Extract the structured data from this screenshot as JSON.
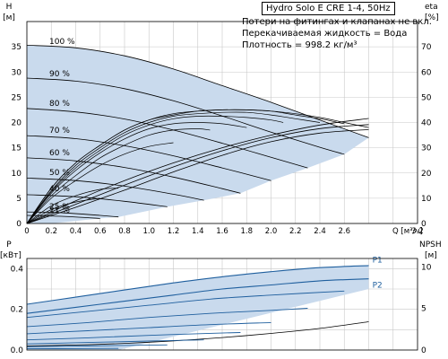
{
  "model": "Hydro Solo E CRE 1-4, 50Hz",
  "notes": [
    "Потери на фитингах и клапанах не вкл.",
    "Перекачиваемая жидкость = Вода",
    "Плотность = 998.2 кг/м³"
  ],
  "colors": {
    "envelope_fill": "#c9daed",
    "curve": "#000000",
    "power_curve": "#1f5f9e",
    "grid": "#c8c8c8"
  },
  "top": {
    "ylabel_left": [
      "H",
      "[м]"
    ],
    "ylabel_right": [
      "eta",
      "[%]"
    ],
    "xlabel": "Q [м³/ч]",
    "xlim": [
      0,
      3.2
    ],
    "ylim_left": [
      0,
      40
    ],
    "ylim_right": [
      0,
      80
    ],
    "x_ticks": [
      "0",
      "0.2",
      "0.4",
      "0.6",
      "0.8",
      "1.0",
      "1.2",
      "1.4",
      "1.6",
      "1.8",
      "2.0",
      "2.2",
      "2.4",
      "2.6",
      "",
      "",
      "3.2"
    ],
    "y_left_ticks": [
      "0",
      "5",
      "10",
      "15",
      "20",
      "25",
      "30",
      "35"
    ],
    "y_right_ticks": [
      "0",
      "10",
      "20",
      "30",
      "40",
      "50",
      "60",
      "70"
    ],
    "speed_labels": [
      "100 %",
      "90 %",
      "80 %",
      "70 %",
      "60 %",
      "50 %",
      "40 %",
      "25 %",
      "21 %"
    ]
  },
  "bottom": {
    "ylabel_left": [
      "P",
      "[кВт]"
    ],
    "ylabel_right": [
      "NPSH",
      "[м]"
    ],
    "ylim_left": [
      0,
      0.45
    ],
    "ylim_right": [
      0,
      11
    ],
    "y_left_ticks": [
      "0.0",
      "0.2",
      "0.4"
    ],
    "y_right_ticks": [
      "0",
      "5",
      "10"
    ],
    "series_labels": [
      "P1",
      "P2"
    ]
  },
  "chart_data": [
    {
      "type": "line",
      "title": "",
      "xlabel": "Q [м³/ч]",
      "ylabel": "H [м]",
      "xlim": [
        0,
        3.2
      ],
      "ylim": [
        0,
        40
      ],
      "grid": true,
      "series": [
        {
          "name": "100 %",
          "x": [
            0,
            0.4,
            0.8,
            1.2,
            1.6,
            2.0,
            2.4,
            2.8
          ],
          "y": [
            35.3,
            34.8,
            33.2,
            30.6,
            27.3,
            24.0,
            20.5,
            17.0
          ]
        },
        {
          "name": "90 %",
          "x": [
            0,
            0.4,
            0.8,
            1.2,
            1.6,
            2.0,
            2.4,
            2.6
          ],
          "y": [
            28.8,
            28.2,
            26.7,
            24.3,
            21.3,
            18.1,
            15.1,
            13.7
          ]
        },
        {
          "name": "80 %",
          "x": [
            0,
            0.4,
            0.8,
            1.2,
            1.6,
            2.0,
            2.3
          ],
          "y": [
            22.8,
            22.1,
            20.7,
            18.5,
            15.9,
            13.1,
            11.0
          ]
        },
        {
          "name": "70 %",
          "x": [
            0,
            0.4,
            0.8,
            1.2,
            1.6,
            2.0
          ],
          "y": [
            17.4,
            16.8,
            15.4,
            13.4,
            11.0,
            8.5
          ]
        },
        {
          "name": "60 %",
          "x": [
            0,
            0.4,
            0.8,
            1.2,
            1.6,
            1.75
          ],
          "y": [
            13.0,
            12.4,
            11.1,
            9.2,
            6.9,
            6.0
          ]
        },
        {
          "name": "50 %",
          "x": [
            0,
            0.4,
            0.8,
            1.2,
            1.45
          ],
          "y": [
            9.0,
            8.5,
            7.4,
            5.8,
            4.6
          ]
        },
        {
          "name": "40 %",
          "x": [
            0,
            0.4,
            0.8,
            1.15
          ],
          "y": [
            5.7,
            5.3,
            4.4,
            3.3
          ]
        },
        {
          "name": "25 %",
          "x": [
            0,
            0.3,
            0.6,
            0.75
          ],
          "y": [
            2.3,
            2.1,
            1.6,
            1.3
          ]
        },
        {
          "name": "21 %",
          "x": [
            0,
            0.3,
            0.6
          ],
          "y": [
            1.6,
            1.4,
            1.0
          ]
        }
      ],
      "eta_series": [
        {
          "scale": 100,
          "x": [
            0,
            0.2,
            0.4,
            0.6,
            0.8,
            1.0,
            1.2,
            1.4,
            1.6,
            1.8,
            2.0,
            2.2,
            2.4,
            2.6,
            2.8
          ],
          "eta": [
            0,
            14,
            24,
            31,
            37,
            41,
            43,
            44.5,
            45,
            45,
            44.5,
            43.5,
            42,
            40,
            38
          ]
        },
        {
          "scale": 90,
          "x": [
            0,
            0.2,
            0.4,
            0.6,
            0.8,
            1.0,
            1.2,
            1.4,
            1.6,
            1.8,
            2.0,
            2.2,
            2.4,
            2.6
          ],
          "eta": [
            0,
            14,
            24,
            31,
            37,
            41,
            43.5,
            44.5,
            45,
            45,
            44.5,
            43,
            41.5,
            39.5
          ]
        },
        {
          "scale": 80,
          "x": [
            0,
            0.2,
            0.4,
            0.6,
            0.8,
            1.0,
            1.2,
            1.4,
            1.6,
            1.8,
            2.0,
            2.2,
            2.4
          ],
          "eta": [
            0,
            13,
            23,
            30,
            36,
            40,
            42.5,
            43.5,
            44,
            44,
            43,
            41.5,
            40
          ]
        },
        {
          "scale": 70,
          "x": [
            0,
            0.2,
            0.4,
            0.6,
            0.8,
            1.0,
            1.2,
            1.4,
            1.6,
            1.8,
            2.0,
            2.1
          ],
          "eta": [
            0,
            12.5,
            22,
            29,
            35,
            39,
            41.5,
            42.5,
            42.5,
            42,
            41,
            40
          ]
        },
        {
          "scale": 60,
          "x": [
            0,
            0.2,
            0.4,
            0.6,
            0.8,
            1.0,
            1.2,
            1.4,
            1.6,
            1.8
          ],
          "eta": [
            0,
            12,
            21,
            28,
            33.5,
            37.5,
            39.5,
            40,
            39.5,
            38
          ]
        },
        {
          "scale": 50,
          "x": [
            0,
            0.2,
            0.4,
            0.6,
            0.8,
            1.0,
            1.2,
            1.4,
            1.5
          ],
          "eta": [
            0,
            11,
            19,
            26,
            31,
            35,
            37,
            37.5,
            37
          ]
        },
        {
          "scale": 40,
          "x": [
            0,
            0.2,
            0.4,
            0.6,
            0.8,
            1.0,
            1.2
          ],
          "eta": [
            0,
            10,
            17,
            23,
            27.5,
            30.5,
            32
          ]
        },
        {
          "scale": 25,
          "x": [
            0,
            0.2,
            0.4,
            0.6,
            0.75
          ],
          "eta": [
            0,
            7,
            11,
            13.5,
            14
          ]
        },
        {
          "scale": 21,
          "x": [
            0,
            0.2,
            0.4,
            0.6
          ],
          "eta": [
            0,
            5.5,
            8.5,
            10
          ]
        }
      ],
      "constant_eta_curves": [
        {
          "x": [
            0,
            0.4,
            0.8,
            1.2,
            1.6,
            2.0,
            2.4,
            2.8
          ],
          "y": [
            0,
            4.5,
            8.5,
            12.0,
            15.0,
            17.5,
            19.5,
            20.8
          ]
        },
        {
          "x": [
            0,
            0.4,
            0.8,
            1.2,
            1.6,
            2.0,
            2.4,
            2.8
          ],
          "y": [
            0,
            3.8,
            7.6,
            11.2,
            14.4,
            17.0,
            18.8,
            19.6
          ]
        },
        {
          "x": [
            0,
            0.4,
            0.8,
            1.2,
            1.6,
            2.0,
            2.4,
            2.8
          ],
          "y": [
            0,
            3.2,
            6.6,
            10.2,
            13.5,
            16.2,
            17.9,
            18.6
          ]
        }
      ],
      "npsh": {
        "x": [
          0,
          0.4,
          0.8,
          1.2,
          1.6,
          2.0,
          2.4,
          2.8
        ],
        "y": [
          0.5,
          0.6,
          0.8,
          1.1,
          1.5,
          2.0,
          2.6,
          3.4
        ]
      }
    },
    {
      "type": "line",
      "title": "",
      "xlabel": "Q [м³/ч]",
      "ylabel": "P [кВт]",
      "xlim": [
        0,
        3.2
      ],
      "ylim": [
        0,
        0.45
      ],
      "grid": true,
      "series": [
        {
          "name": "P1",
          "x": [
            0,
            0.4,
            0.8,
            1.2,
            1.6,
            2.0,
            2.4,
            2.8
          ],
          "y": [
            0.225,
            0.26,
            0.295,
            0.33,
            0.36,
            0.385,
            0.405,
            0.415
          ]
        },
        {
          "name": "P2",
          "x": [
            0,
            0.4,
            0.8,
            1.2,
            1.6,
            2.0,
            2.4,
            2.8
          ],
          "y": [
            0.18,
            0.21,
            0.24,
            0.27,
            0.3,
            0.32,
            0.34,
            0.35
          ]
        }
      ],
      "scaled_power_p1": [
        {
          "scale": 90,
          "x": [
            0,
            0.5,
            1.0,
            1.5,
            2.0,
            2.6
          ],
          "y": [
            0.16,
            0.19,
            0.22,
            0.25,
            0.27,
            0.29
          ]
        },
        {
          "scale": 80,
          "x": [
            0,
            0.5,
            1.0,
            1.5,
            2.0,
            2.3
          ],
          "y": [
            0.115,
            0.135,
            0.16,
            0.18,
            0.195,
            0.205
          ]
        },
        {
          "scale": 70,
          "x": [
            0,
            0.5,
            1.0,
            1.5,
            2.0
          ],
          "y": [
            0.08,
            0.095,
            0.11,
            0.125,
            0.135
          ]
        },
        {
          "scale": 60,
          "x": [
            0,
            0.5,
            1.0,
            1.5,
            1.75
          ],
          "y": [
            0.05,
            0.06,
            0.072,
            0.082,
            0.086
          ]
        },
        {
          "scale": 50,
          "x": [
            0,
            0.5,
            1.0,
            1.45
          ],
          "y": [
            0.03,
            0.037,
            0.044,
            0.05
          ]
        },
        {
          "scale": 40,
          "x": [
            0,
            0.5,
            1.0,
            1.15
          ],
          "y": [
            0.016,
            0.02,
            0.024,
            0.025
          ]
        },
        {
          "scale": 25,
          "x": [
            0,
            0.4,
            0.75
          ],
          "y": [
            0.006,
            0.007,
            0.008
          ]
        }
      ]
    }
  ]
}
